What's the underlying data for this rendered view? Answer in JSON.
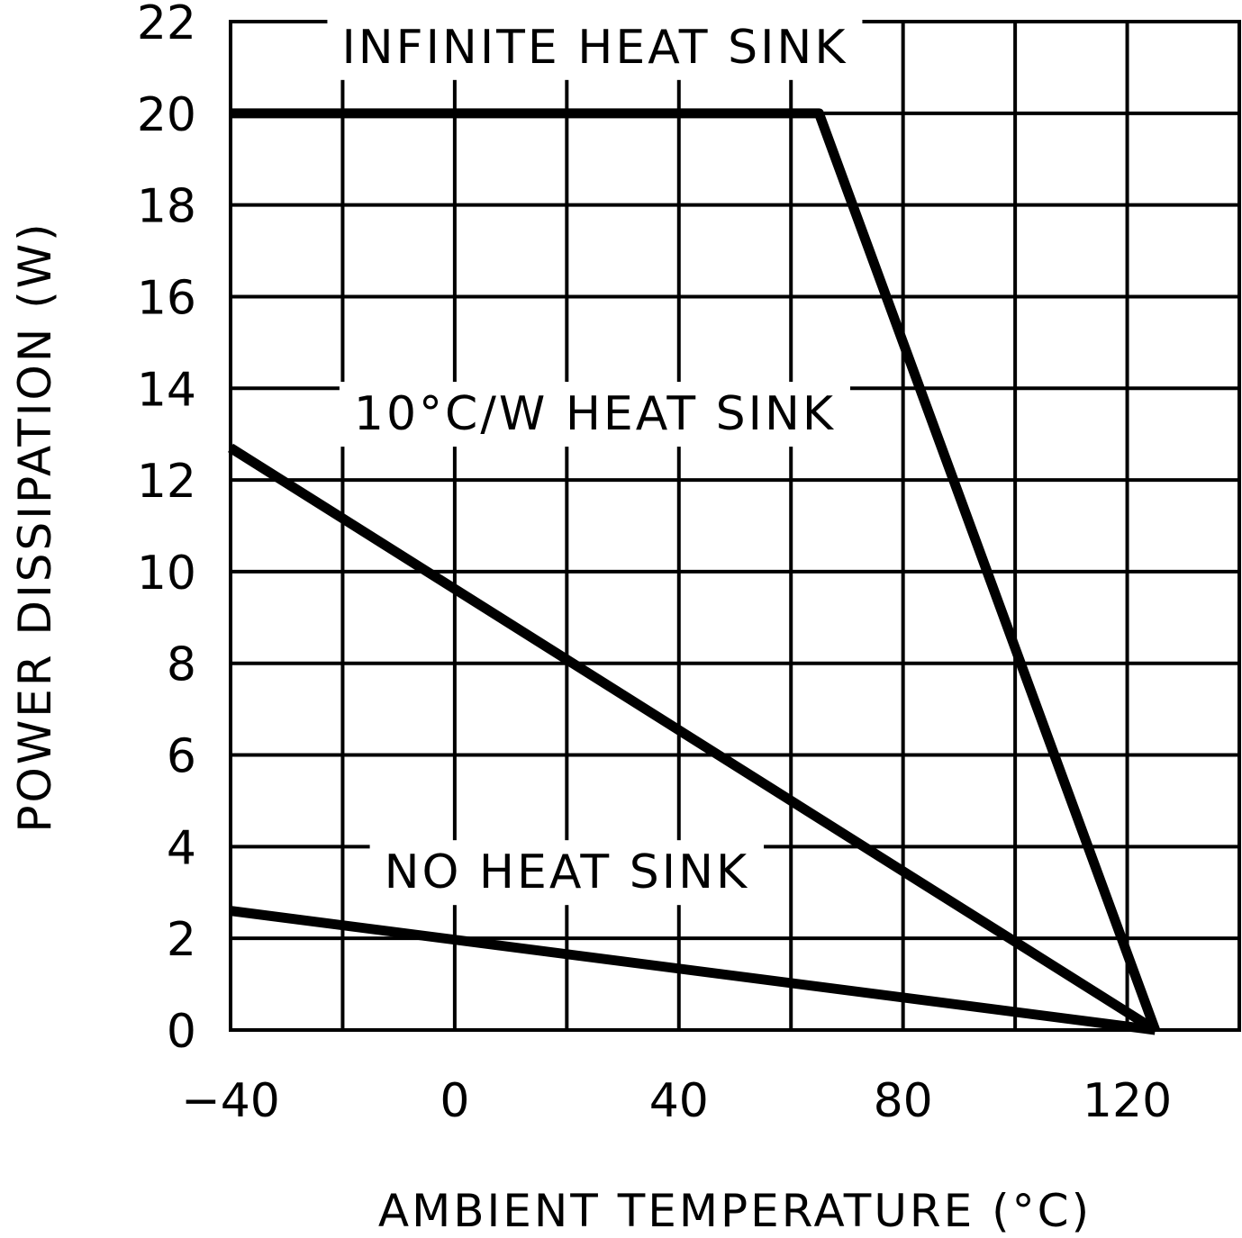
{
  "chart_data": {
    "type": "line",
    "title": "",
    "xlabel": "AMBIENT TEMPERATURE (°C)",
    "ylabel": "POWER DISSIPATION (W)",
    "xlim": [
      -40,
      140
    ],
    "ylim": [
      0,
      22
    ],
    "x_gridlines": [
      -40,
      -20,
      0,
      20,
      40,
      60,
      80,
      100,
      120,
      140
    ],
    "y_gridlines": [
      0,
      2,
      4,
      6,
      8,
      10,
      12,
      14,
      16,
      18,
      20,
      22
    ],
    "x_tick_labels": [
      {
        "value": -40,
        "label": "−40"
      },
      {
        "value": 0,
        "label": "0"
      },
      {
        "value": 40,
        "label": "40"
      },
      {
        "value": 80,
        "label": "80"
      },
      {
        "value": 120,
        "label": "120"
      }
    ],
    "y_tick_labels": [
      {
        "value": 0,
        "label": "0"
      },
      {
        "value": 2,
        "label": "2"
      },
      {
        "value": 4,
        "label": "4"
      },
      {
        "value": 6,
        "label": "6"
      },
      {
        "value": 8,
        "label": "8"
      },
      {
        "value": 10,
        "label": "10"
      },
      {
        "value": 12,
        "label": "12"
      },
      {
        "value": 14,
        "label": "14"
      },
      {
        "value": 16,
        "label": "16"
      },
      {
        "value": 18,
        "label": "18"
      },
      {
        "value": 20,
        "label": "20"
      },
      {
        "value": 22,
        "label": "22"
      }
    ],
    "grid": true,
    "legend": "none",
    "line_color": "#000000",
    "series": [
      {
        "name": "INFINITE HEAT SINK",
        "x": [
          -40,
          65,
          125
        ],
        "y": [
          20,
          20,
          0
        ]
      },
      {
        "name": "10°C/W HEAT SINK",
        "x": [
          -40,
          125
        ],
        "y": [
          12.7,
          0
        ]
      },
      {
        "name": "NO HEAT SINK",
        "x": [
          -40,
          125
        ],
        "y": [
          2.6,
          0
        ]
      }
    ],
    "annotations": [
      {
        "text": "INFINITE HEAT SINK",
        "x": 25,
        "y": 21.1
      },
      {
        "text": "10°C/W HEAT SINK",
        "x": 25,
        "y": 13.1
      },
      {
        "text": "NO HEAT SINK",
        "x": 20,
        "y": 3.1
      }
    ]
  }
}
